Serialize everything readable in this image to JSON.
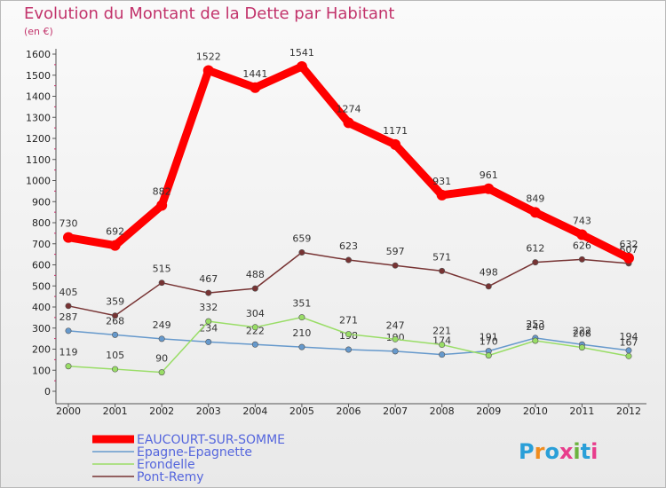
{
  "title": "Evolution du Montant de la Dette par Habitant",
  "unit": "(en €)",
  "brand": "Proxiti",
  "chart_data": {
    "type": "line",
    "x": [
      2000,
      2001,
      2002,
      2003,
      2004,
      2005,
      2006,
      2007,
      2008,
      2009,
      2010,
      2011,
      2012
    ],
    "ylim": [
      0,
      1600
    ],
    "yticks": [
      0,
      100,
      200,
      300,
      400,
      500,
      600,
      700,
      800,
      900,
      1000,
      1100,
      1200,
      1300,
      1400,
      1500,
      1600
    ],
    "grid": false,
    "legend_position": "bottom-left",
    "series": [
      {
        "name": "EAUCOURT-SUR-SOMME",
        "color": "#ff0000",
        "values": [
          730,
          692,
          882,
          1522,
          1441,
          1541,
          1274,
          1171,
          931,
          961,
          849,
          743,
          632
        ]
      },
      {
        "name": "Epagne-Epagnette",
        "color": "#6699cc",
        "values": [
          287,
          268,
          249,
          234,
          222,
          210,
          198,
          190,
          174,
          191,
          253,
          222,
          194
        ]
      },
      {
        "name": "Erondelle",
        "color": "#99dd66",
        "values": [
          119,
          105,
          90,
          332,
          304,
          351,
          271,
          247,
          221,
          170,
          240,
          208,
          167
        ]
      },
      {
        "name": "Pont-Remy",
        "color": "#773333",
        "values": [
          405,
          359,
          515,
          467,
          488,
          659,
          623,
          597,
          571,
          498,
          612,
          626,
          607
        ]
      }
    ]
  }
}
